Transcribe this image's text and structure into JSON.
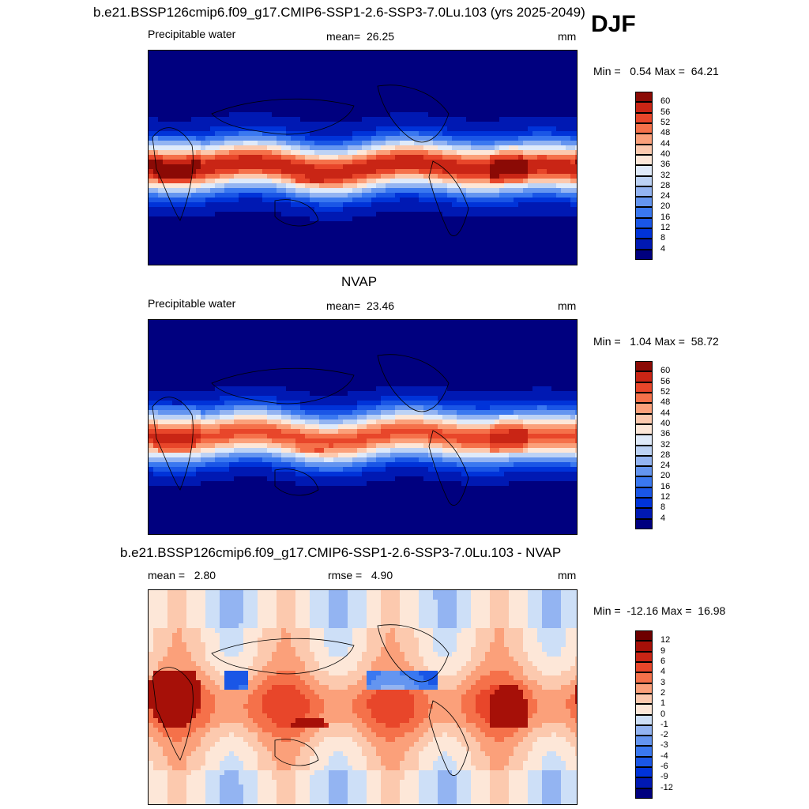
{
  "figure": {
    "season": "DJF",
    "top_title": "b.e21.BSSP126cmip6.f09_g17.CMIP6-SSP1-2.6-SSP3-7.0Lu.103 (yrs 2025-2049)"
  },
  "chart_data": [
    {
      "type": "heatmap",
      "title": "b.e21.BSSP126cmip6.f09_g17.CMIP6-SSP1-2.6-SSP3-7.0Lu.103 (yrs 2025-2049)",
      "variable": "Precipitable water",
      "mean_label": "mean=",
      "mean": "26.25",
      "units": "mm",
      "min_label": "Min =",
      "min": "0.54",
      "max_label": "Max =",
      "max": "64.21",
      "levels": [
        4,
        8,
        12,
        16,
        20,
        24,
        28,
        32,
        36,
        40,
        44,
        48,
        52,
        56,
        60
      ],
      "colors": [
        "#00007f",
        "#0019b3",
        "#0033d9",
        "#1a56e6",
        "#3a78f0",
        "#6495f0",
        "#93b4f2",
        "#bcd2f5",
        "#dfeafa",
        "#fde7d8",
        "#fcc9ae",
        "#fba07a",
        "#f5714a",
        "#e8462a",
        "#c92515",
        "#8b0a05"
      ],
      "field": "pw_model"
    },
    {
      "type": "heatmap",
      "title": "NVAP",
      "variable": "Precipitable water",
      "mean_label": "mean=",
      "mean": "23.46",
      "units": "mm",
      "min_label": "Min =",
      "min": "1.04",
      "max_label": "Max =",
      "max": "58.72",
      "levels": [
        4,
        8,
        12,
        16,
        20,
        24,
        28,
        32,
        36,
        40,
        44,
        48,
        52,
        56,
        60
      ],
      "colors": [
        "#00007f",
        "#0019b3",
        "#0033d9",
        "#1a56e6",
        "#3a78f0",
        "#6495f0",
        "#93b4f2",
        "#bcd2f5",
        "#dfeafa",
        "#fde7d8",
        "#fcc9ae",
        "#fba07a",
        "#f5714a",
        "#e8462a",
        "#c92515",
        "#8b0a05"
      ],
      "field": "pw_obs"
    },
    {
      "type": "heatmap",
      "title": "b.e21.BSSP126cmip6.f09_g17.CMIP6-SSP1-2.6-SSP3-7.0Lu.103 - NVAP",
      "mean_label": "mean =",
      "mean": "2.80",
      "rmse_label": "rmse =",
      "rmse": "4.90",
      "units": "mm",
      "min_label": "Min =",
      "min": "-12.16",
      "max_label": "Max =",
      "max": "16.98",
      "levels": [
        -12,
        -9,
        -6,
        -4,
        -3,
        -2,
        -1,
        0,
        1,
        2,
        3,
        4,
        6,
        9,
        12
      ],
      "colors": [
        "#00007f",
        "#0019b3",
        "#0033d9",
        "#1a56e6",
        "#3a78f0",
        "#6495f0",
        "#93b4f2",
        "#cddff7",
        "#fde7d8",
        "#fcc9ae",
        "#fba07a",
        "#f5714a",
        "#e8462a",
        "#c92515",
        "#a61008",
        "#6e0000"
      ],
      "field": "pw_diff"
    }
  ]
}
